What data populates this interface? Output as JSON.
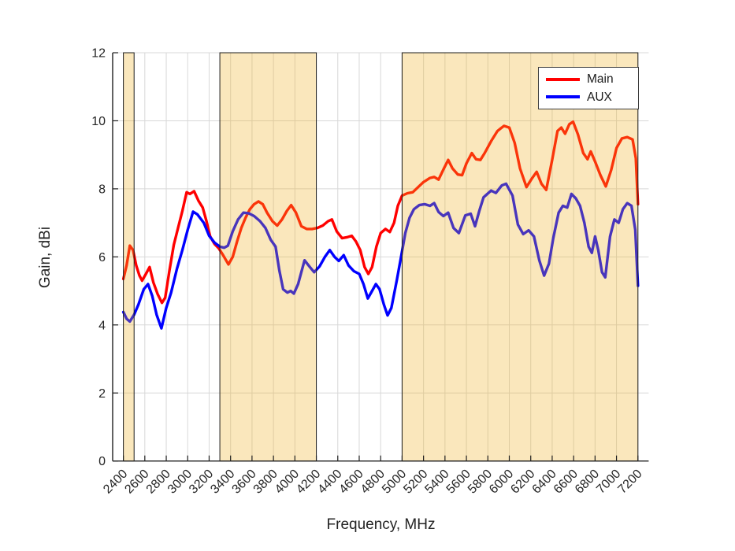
{
  "chart_data": {
    "type": "line",
    "title": "",
    "xlabel": "Frequency, MHz",
    "ylabel": "Gain, dBi",
    "xlim": [
      2300,
      7300
    ],
    "ylim": [
      0,
      12
    ],
    "xticks": [
      2400,
      2600,
      2800,
      3000,
      3200,
      3400,
      3600,
      3800,
      4000,
      4200,
      4400,
      4600,
      4800,
      5000,
      5200,
      5400,
      5600,
      5800,
      6000,
      6200,
      6400,
      6600,
      6800,
      7000,
      7200
    ],
    "yticks": [
      0,
      2,
      4,
      6,
      8,
      10,
      12
    ],
    "grid": true,
    "legend_position": "top-right",
    "highlight_bands_mhz": [
      [
        2400,
        2500
      ],
      [
        3300,
        4200
      ],
      [
        5000,
        7200
      ]
    ],
    "series": [
      {
        "name": "Main",
        "color": "#ff0000",
        "points": [
          [
            2400,
            5.35
          ],
          [
            2430,
            5.75
          ],
          [
            2460,
            6.33
          ],
          [
            2490,
            6.2
          ],
          [
            2520,
            5.75
          ],
          [
            2550,
            5.45
          ],
          [
            2575,
            5.3
          ],
          [
            2610,
            5.5
          ],
          [
            2645,
            5.7
          ],
          [
            2680,
            5.25
          ],
          [
            2720,
            4.9
          ],
          [
            2760,
            4.65
          ],
          [
            2790,
            4.8
          ],
          [
            2830,
            5.6
          ],
          [
            2870,
            6.35
          ],
          [
            2910,
            6.85
          ],
          [
            2950,
            7.35
          ],
          [
            2990,
            7.9
          ],
          [
            3020,
            7.85
          ],
          [
            3060,
            7.93
          ],
          [
            3100,
            7.65
          ],
          [
            3140,
            7.45
          ],
          [
            3175,
            7.05
          ],
          [
            3210,
            6.6
          ],
          [
            3250,
            6.38
          ],
          [
            3290,
            6.25
          ],
          [
            3330,
            6.05
          ],
          [
            3380,
            5.78
          ],
          [
            3420,
            6.0
          ],
          [
            3460,
            6.45
          ],
          [
            3500,
            6.85
          ],
          [
            3540,
            7.15
          ],
          [
            3580,
            7.4
          ],
          [
            3620,
            7.55
          ],
          [
            3660,
            7.63
          ],
          [
            3700,
            7.55
          ],
          [
            3740,
            7.3
          ],
          [
            3790,
            7.05
          ],
          [
            3835,
            6.92
          ],
          [
            3880,
            7.1
          ],
          [
            3925,
            7.35
          ],
          [
            3965,
            7.52
          ],
          [
            4010,
            7.3
          ],
          [
            4060,
            6.9
          ],
          [
            4110,
            6.82
          ],
          [
            4160,
            6.82
          ],
          [
            4210,
            6.85
          ],
          [
            4260,
            6.92
          ],
          [
            4310,
            7.05
          ],
          [
            4345,
            7.1
          ],
          [
            4390,
            6.75
          ],
          [
            4440,
            6.55
          ],
          [
            4490,
            6.58
          ],
          [
            4530,
            6.62
          ],
          [
            4570,
            6.45
          ],
          [
            4610,
            6.2
          ],
          [
            4650,
            5.7
          ],
          [
            4685,
            5.5
          ],
          [
            4720,
            5.7
          ],
          [
            4760,
            6.3
          ],
          [
            4800,
            6.7
          ],
          [
            4845,
            6.82
          ],
          [
            4885,
            6.73
          ],
          [
            4925,
            7.0
          ],
          [
            4960,
            7.5
          ],
          [
            5000,
            7.8
          ],
          [
            5050,
            7.87
          ],
          [
            5100,
            7.9
          ],
          [
            5150,
            8.05
          ],
          [
            5200,
            8.2
          ],
          [
            5260,
            8.32
          ],
          [
            5300,
            8.35
          ],
          [
            5340,
            8.27
          ],
          [
            5390,
            8.6
          ],
          [
            5430,
            8.85
          ],
          [
            5470,
            8.6
          ],
          [
            5520,
            8.42
          ],
          [
            5560,
            8.4
          ],
          [
            5600,
            8.75
          ],
          [
            5650,
            9.05
          ],
          [
            5690,
            8.87
          ],
          [
            5730,
            8.85
          ],
          [
            5770,
            9.05
          ],
          [
            5830,
            9.4
          ],
          [
            5890,
            9.7
          ],
          [
            5950,
            9.85
          ],
          [
            6000,
            9.8
          ],
          [
            6050,
            9.35
          ],
          [
            6100,
            8.6
          ],
          [
            6160,
            8.05
          ],
          [
            6210,
            8.3
          ],
          [
            6255,
            8.5
          ],
          [
            6300,
            8.15
          ],
          [
            6345,
            7.97
          ],
          [
            6400,
            8.85
          ],
          [
            6450,
            9.7
          ],
          [
            6485,
            9.8
          ],
          [
            6520,
            9.62
          ],
          [
            6560,
            9.9
          ],
          [
            6595,
            9.97
          ],
          [
            6640,
            9.6
          ],
          [
            6690,
            9.05
          ],
          [
            6730,
            8.87
          ],
          [
            6760,
            9.1
          ],
          [
            6800,
            8.8
          ],
          [
            6850,
            8.4
          ],
          [
            6900,
            8.07
          ],
          [
            6950,
            8.55
          ],
          [
            7000,
            9.2
          ],
          [
            7050,
            9.48
          ],
          [
            7100,
            9.52
          ],
          [
            7150,
            9.45
          ],
          [
            7180,
            8.9
          ],
          [
            7200,
            7.55
          ]
        ]
      },
      {
        "name": "AUX",
        "color": "#0000ff",
        "points": [
          [
            2400,
            4.38
          ],
          [
            2430,
            4.18
          ],
          [
            2460,
            4.1
          ],
          [
            2500,
            4.3
          ],
          [
            2540,
            4.6
          ],
          [
            2590,
            5.05
          ],
          [
            2630,
            5.2
          ],
          [
            2670,
            4.85
          ],
          [
            2710,
            4.3
          ],
          [
            2755,
            3.9
          ],
          [
            2800,
            4.5
          ],
          [
            2845,
            4.95
          ],
          [
            2900,
            5.65
          ],
          [
            2950,
            6.2
          ],
          [
            3000,
            6.8
          ],
          [
            3050,
            7.33
          ],
          [
            3090,
            7.25
          ],
          [
            3150,
            7.0
          ],
          [
            3200,
            6.62
          ],
          [
            3250,
            6.42
          ],
          [
            3300,
            6.3
          ],
          [
            3340,
            6.27
          ],
          [
            3375,
            6.33
          ],
          [
            3420,
            6.75
          ],
          [
            3470,
            7.1
          ],
          [
            3520,
            7.3
          ],
          [
            3570,
            7.28
          ],
          [
            3620,
            7.2
          ],
          [
            3675,
            7.05
          ],
          [
            3725,
            6.85
          ],
          [
            3775,
            6.5
          ],
          [
            3820,
            6.3
          ],
          [
            3855,
            5.6
          ],
          [
            3890,
            5.05
          ],
          [
            3930,
            4.95
          ],
          [
            3960,
            5.0
          ],
          [
            3990,
            4.92
          ],
          [
            4030,
            5.2
          ],
          [
            4090,
            5.9
          ],
          [
            4140,
            5.7
          ],
          [
            4180,
            5.55
          ],
          [
            4230,
            5.72
          ],
          [
            4280,
            6.0
          ],
          [
            4325,
            6.2
          ],
          [
            4370,
            6.0
          ],
          [
            4410,
            5.88
          ],
          [
            4455,
            6.05
          ],
          [
            4500,
            5.75
          ],
          [
            4550,
            5.58
          ],
          [
            4600,
            5.5
          ],
          [
            4640,
            5.2
          ],
          [
            4680,
            4.78
          ],
          [
            4720,
            5.0
          ],
          [
            4755,
            5.2
          ],
          [
            4790,
            5.05
          ],
          [
            4830,
            4.6
          ],
          [
            4865,
            4.28
          ],
          [
            4900,
            4.5
          ],
          [
            4950,
            5.3
          ],
          [
            4990,
            6.0
          ],
          [
            5030,
            6.7
          ],
          [
            5070,
            7.15
          ],
          [
            5110,
            7.4
          ],
          [
            5160,
            7.52
          ],
          [
            5210,
            7.55
          ],
          [
            5260,
            7.5
          ],
          [
            5300,
            7.58
          ],
          [
            5340,
            7.32
          ],
          [
            5385,
            7.2
          ],
          [
            5430,
            7.3
          ],
          [
            5480,
            6.85
          ],
          [
            5530,
            6.7
          ],
          [
            5590,
            7.22
          ],
          [
            5640,
            7.27
          ],
          [
            5680,
            6.9
          ],
          [
            5720,
            7.35
          ],
          [
            5760,
            7.75
          ],
          [
            5830,
            7.95
          ],
          [
            5875,
            7.88
          ],
          [
            5930,
            8.1
          ],
          [
            5970,
            8.15
          ],
          [
            6030,
            7.8
          ],
          [
            6080,
            6.95
          ],
          [
            6130,
            6.67
          ],
          [
            6180,
            6.78
          ],
          [
            6230,
            6.6
          ],
          [
            6280,
            5.9
          ],
          [
            6325,
            5.45
          ],
          [
            6370,
            5.8
          ],
          [
            6410,
            6.55
          ],
          [
            6460,
            7.3
          ],
          [
            6500,
            7.5
          ],
          [
            6540,
            7.45
          ],
          [
            6580,
            7.85
          ],
          [
            6620,
            7.72
          ],
          [
            6660,
            7.5
          ],
          [
            6700,
            7.0
          ],
          [
            6740,
            6.3
          ],
          [
            6770,
            6.12
          ],
          [
            6800,
            6.6
          ],
          [
            6830,
            6.2
          ],
          [
            6865,
            5.55
          ],
          [
            6895,
            5.4
          ],
          [
            6940,
            6.6
          ],
          [
            6980,
            7.1
          ],
          [
            7020,
            7.0
          ],
          [
            7060,
            7.4
          ],
          [
            7100,
            7.58
          ],
          [
            7140,
            7.5
          ],
          [
            7175,
            6.8
          ],
          [
            7200,
            5.15
          ]
        ]
      }
    ]
  },
  "colors": {
    "band_fill": "#edb120",
    "band_fill_alpha": 0.3,
    "band_edge": "#1c1c1c",
    "grid": "#d8d8d8",
    "axis": "#1f1f1f",
    "text": "#242424",
    "background": "#ffffff"
  }
}
